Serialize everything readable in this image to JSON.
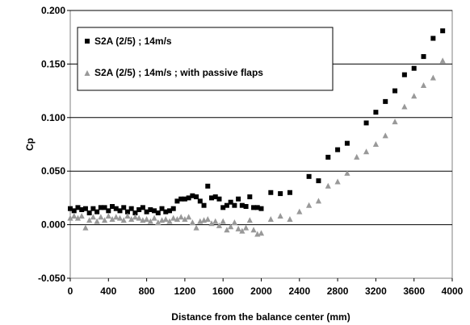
{
  "chart_data": {
    "type": "scatter",
    "title": "",
    "xlabel": "Distance from the balance center (mm)",
    "ylabel": "Cp",
    "xlim": [
      0,
      4000
    ],
    "ylim": [
      -0.05,
      0.2
    ],
    "x_ticks": [
      0,
      400,
      800,
      1200,
      1600,
      2000,
      2400,
      2800,
      3200,
      3600,
      4000
    ],
    "y_ticks": [
      -0.05,
      0,
      0.05,
      0.1,
      0.15,
      0.2
    ],
    "x_tick_labels": [
      "0",
      "400",
      "800",
      "1200",
      "1600",
      "2000",
      "2400",
      "2800",
      "3200",
      "3600",
      "4000"
    ],
    "y_tick_labels": [
      "-0.050",
      "0.000",
      "0.050",
      "0.100",
      "0.150",
      "0.200"
    ],
    "grid": "horizontal major lines",
    "legend_position": "top-left",
    "colors": {
      "series1": "#000000",
      "series2": "#999999",
      "gridline": "#000000"
    },
    "series": [
      {
        "name": "S2A (2/5) ; 14m/s",
        "marker": "square",
        "points": [
          [
            0,
            0.015
          ],
          [
            40,
            0.013
          ],
          [
            80,
            0.016
          ],
          [
            120,
            0.014
          ],
          [
            160,
            0.015
          ],
          [
            200,
            0.011
          ],
          [
            240,
            0.015
          ],
          [
            280,
            0.012
          ],
          [
            320,
            0.016
          ],
          [
            360,
            0.016
          ],
          [
            400,
            0.013
          ],
          [
            440,
            0.017
          ],
          [
            480,
            0.015
          ],
          [
            520,
            0.013
          ],
          [
            560,
            0.016
          ],
          [
            600,
            0.012
          ],
          [
            640,
            0.015
          ],
          [
            680,
            0.011
          ],
          [
            720,
            0.014
          ],
          [
            760,
            0.016
          ],
          [
            800,
            0.012
          ],
          [
            840,
            0.014
          ],
          [
            880,
            0.013
          ],
          [
            920,
            0.011
          ],
          [
            960,
            0.015
          ],
          [
            1000,
            0.012
          ],
          [
            1040,
            0.013
          ],
          [
            1080,
            0.015
          ],
          [
            1120,
            0.022
          ],
          [
            1160,
            0.024
          ],
          [
            1200,
            0.024
          ],
          [
            1240,
            0.025
          ],
          [
            1280,
            0.027
          ],
          [
            1320,
            0.026
          ],
          [
            1360,
            0.022
          ],
          [
            1400,
            0.018
          ],
          [
            1440,
            0.036
          ],
          [
            1480,
            0.025
          ],
          [
            1520,
            0.026
          ],
          [
            1560,
            0.024
          ],
          [
            1600,
            0.016
          ],
          [
            1640,
            0.018
          ],
          [
            1680,
            0.021
          ],
          [
            1720,
            0.018
          ],
          [
            1760,
            0.024
          ],
          [
            1800,
            0.018
          ],
          [
            1840,
            0.017
          ],
          [
            1880,
            0.026
          ],
          [
            1920,
            0.016
          ],
          [
            1960,
            0.016
          ],
          [
            2000,
            0.015
          ],
          [
            2100,
            0.03
          ],
          [
            2200,
            0.029
          ],
          [
            2300,
            0.03
          ],
          [
            2500,
            0.045
          ],
          [
            2600,
            0.041
          ],
          [
            2700,
            0.063
          ],
          [
            2800,
            0.07
          ],
          [
            2900,
            0.076
          ],
          [
            3100,
            0.095
          ],
          [
            3200,
            0.105
          ],
          [
            3300,
            0.115
          ],
          [
            3400,
            0.125
          ],
          [
            3500,
            0.14
          ],
          [
            3600,
            0.146
          ],
          [
            3700,
            0.157
          ],
          [
            3800,
            0.174
          ],
          [
            3900,
            0.181
          ]
        ]
      },
      {
        "name": "S2A (2/5) ; 14m/s ; with passive flaps",
        "marker": "triangle",
        "points": [
          [
            0,
            0.006
          ],
          [
            40,
            0.008
          ],
          [
            80,
            0.006
          ],
          [
            120,
            0.008
          ],
          [
            160,
            -0.003
          ],
          [
            200,
            0.004
          ],
          [
            240,
            0.007
          ],
          [
            280,
            0.003
          ],
          [
            320,
            0.007
          ],
          [
            360,
            0.004
          ],
          [
            400,
            0.008
          ],
          [
            440,
            0.005
          ],
          [
            480,
            0.007
          ],
          [
            520,
            0.006
          ],
          [
            560,
            0.004
          ],
          [
            600,
            0.008
          ],
          [
            640,
            0.005
          ],
          [
            680,
            0.007
          ],
          [
            720,
            0.006
          ],
          [
            760,
            0.004
          ],
          [
            800,
            0.005
          ],
          [
            840,
            0.003
          ],
          [
            880,
            0.006
          ],
          [
            920,
            0.002
          ],
          [
            960,
            0.004
          ],
          [
            1000,
            0.005
          ],
          [
            1040,
            0.003
          ],
          [
            1080,
            0.006
          ],
          [
            1120,
            0.005
          ],
          [
            1160,
            0.007
          ],
          [
            1200,
            0.005
          ],
          [
            1240,
            0.007
          ],
          [
            1280,
            0.002
          ],
          [
            1320,
            -0.003
          ],
          [
            1360,
            0.003
          ],
          [
            1400,
            0.004
          ],
          [
            1440,
            0.005
          ],
          [
            1480,
            0.001
          ],
          [
            1520,
            0.003
          ],
          [
            1560,
            -0.001
          ],
          [
            1600,
            0.003
          ],
          [
            1640,
            -0.005
          ],
          [
            1680,
            -0.002
          ],
          [
            1720,
            0.002
          ],
          [
            1760,
            -0.004
          ],
          [
            1800,
            -0.006
          ],
          [
            1840,
            -0.003
          ],
          [
            1880,
            0.004
          ],
          [
            1920,
            -0.005
          ],
          [
            1960,
            -0.009
          ],
          [
            2000,
            -0.008
          ],
          [
            2100,
            0.005
          ],
          [
            2200,
            0.008
          ],
          [
            2300,
            0.005
          ],
          [
            2400,
            0.012
          ],
          [
            2500,
            0.018
          ],
          [
            2600,
            0.022
          ],
          [
            2700,
            0.036
          ],
          [
            2800,
            0.04
          ],
          [
            2900,
            0.048
          ],
          [
            3000,
            0.063
          ],
          [
            3100,
            0.068
          ],
          [
            3200,
            0.075
          ],
          [
            3300,
            0.083
          ],
          [
            3400,
            0.096
          ],
          [
            3500,
            0.11
          ],
          [
            3600,
            0.12
          ],
          [
            3700,
            0.13
          ],
          [
            3800,
            0.137
          ],
          [
            3900,
            0.153
          ]
        ]
      }
    ]
  }
}
